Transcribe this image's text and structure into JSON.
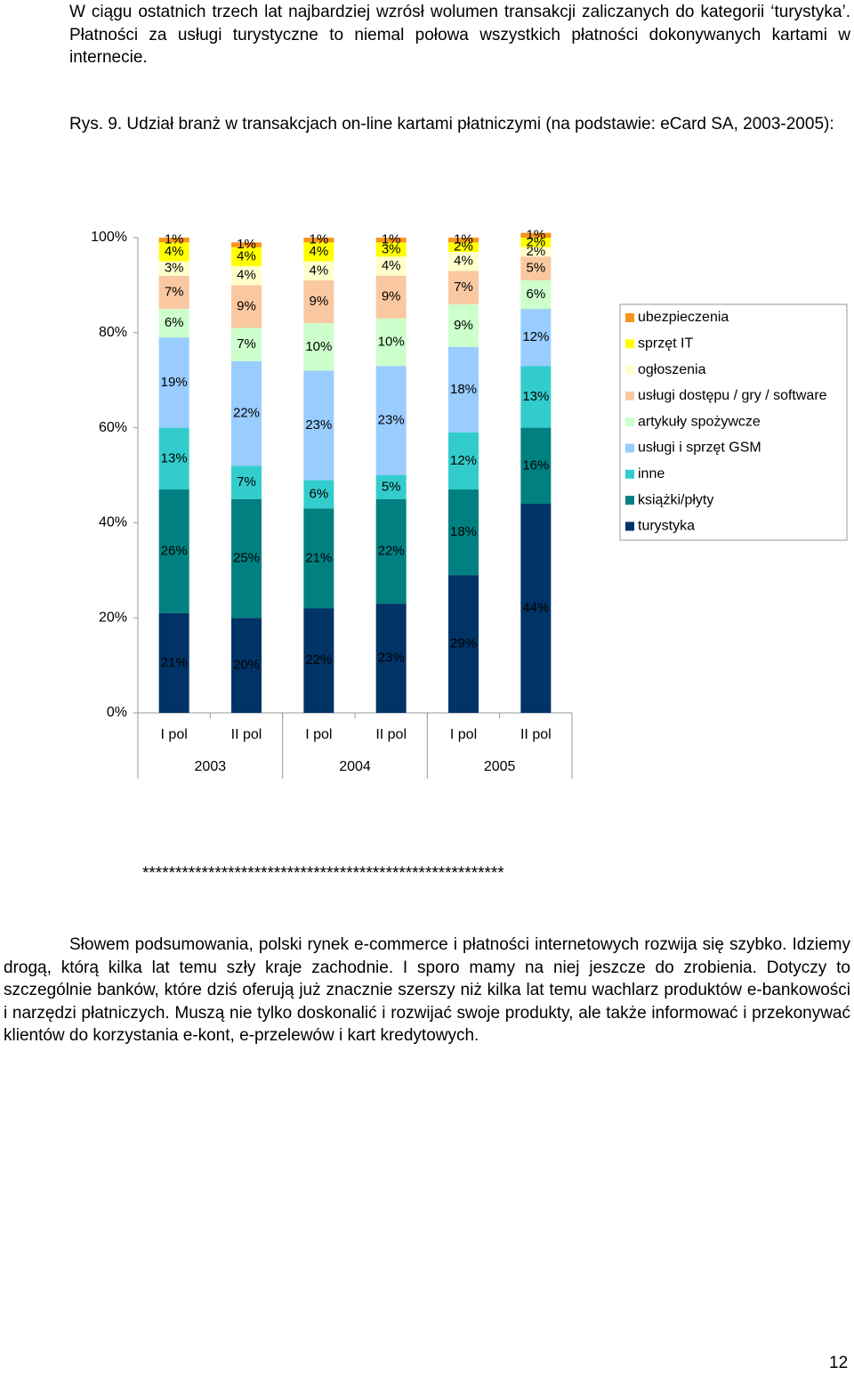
{
  "paragraph_1": "W ciągu ostatnich trzech lat najbardziej wzrósł wolumen transakcji zaliczanych do kategorii ‘turystyka’. Płatności za usługi turystyczne to niemal połowa wszystkich płatności dokonywanych kartami w internecie.",
  "caption": "Rys. 9. Udział branż w transakcjach on-line kartami płatniczymi (na podstawie: eCard SA, 2003-2005):",
  "chart_data": {
    "type": "stacked_bar",
    "categories": [
      "I pol",
      "II pol",
      "I pol",
      "II pol",
      "I pol",
      "II pol"
    ],
    "group_labels": [
      "2003",
      "2004",
      "2005"
    ],
    "ylim": [
      0,
      100
    ],
    "yticks": [
      {
        "value": 0,
        "label": "0%"
      },
      {
        "value": 20,
        "label": "20%"
      },
      {
        "value": 40,
        "label": "40%"
      },
      {
        "value": 60,
        "label": "60%"
      },
      {
        "value": 80,
        "label": "80%"
      },
      {
        "value": 100,
        "label": "100%"
      }
    ],
    "legend": "right",
    "series": [
      {
        "name": "turystyka",
        "color": "#003366",
        "values": [
          21,
          20,
          22,
          23,
          29,
          44
        ],
        "value_labels": [
          "21%",
          "20%",
          "22%",
          "23%",
          "29%",
          "44%"
        ]
      },
      {
        "name": "książki/płyty",
        "color": "#008080",
        "values": [
          26,
          25,
          21,
          22,
          18,
          16
        ],
        "value_labels": [
          "26%",
          "25%",
          "21%",
          "22%",
          "18%",
          "16%"
        ]
      },
      {
        "name": "inne",
        "color": "#33cccc",
        "values": [
          13,
          7,
          6,
          5,
          12,
          13
        ],
        "value_labels": [
          "13%",
          "7%",
          "6%",
          "5%",
          "12%",
          "13%"
        ]
      },
      {
        "name": "usługi i sprzęt GSM",
        "color": "#99ccff",
        "values": [
          19,
          22,
          23,
          23,
          18,
          12
        ],
        "value_labels": [
          "19%",
          "22%",
          "23%",
          "23%",
          "18%",
          "12%"
        ]
      },
      {
        "name": "artykuły spożywcze",
        "color": "#ccffcc",
        "values": [
          6,
          7,
          10,
          10,
          9,
          6
        ],
        "value_labels": [
          "6%",
          "7%",
          "10%",
          "10%",
          "9%",
          "6%"
        ]
      },
      {
        "name": "usługi dostępu / gry / software",
        "color": "#fac8a0",
        "values": [
          7,
          9,
          9,
          9,
          7,
          5
        ],
        "value_labels": [
          "7%",
          "9%",
          "9%",
          "9%",
          "7%",
          "5%"
        ]
      },
      {
        "name": "ogłoszenia",
        "color": "#ffffcc",
        "values": [
          3,
          4,
          4,
          4,
          4,
          2
        ],
        "value_labels": [
          "3%",
          "4%",
          "4%",
          "4%",
          "4%",
          "2%"
        ]
      },
      {
        "name": "sprzęt IT",
        "color": "#ffff00",
        "values": [
          4,
          4,
          4,
          3,
          2,
          2
        ],
        "value_labels": [
          "4%",
          "4%",
          "4%",
          "3%",
          "2%",
          "2%"
        ]
      },
      {
        "name": "ubezpieczenia",
        "color": "#f7941d",
        "values": [
          1,
          1,
          1,
          1,
          1,
          1
        ],
        "value_labels": [
          "1%",
          "1%",
          "1%",
          "1%",
          "1%",
          "1%"
        ]
      }
    ]
  },
  "separator": "*******************************************************",
  "paragraph_2": "Słowem podsumowania, polski rynek e-commerce i płatności internetowych rozwija się szybko. Idziemy drogą, którą kilka lat temu szły kraje zachodnie. I sporo mamy na niej jeszcze do zrobienia. Dotyczy to szczególnie banków, które dziś oferują już znacznie szerszy niż kilka lat temu wachlarz produktów e-bankowości i narzędzi płatniczych. Muszą nie tylko doskonalić i rozwijać swoje produkty, ale także informować i przekonywać klientów do korzystania e-kont, e-przelewów i kart kredytowych.",
  "page_number": "12"
}
